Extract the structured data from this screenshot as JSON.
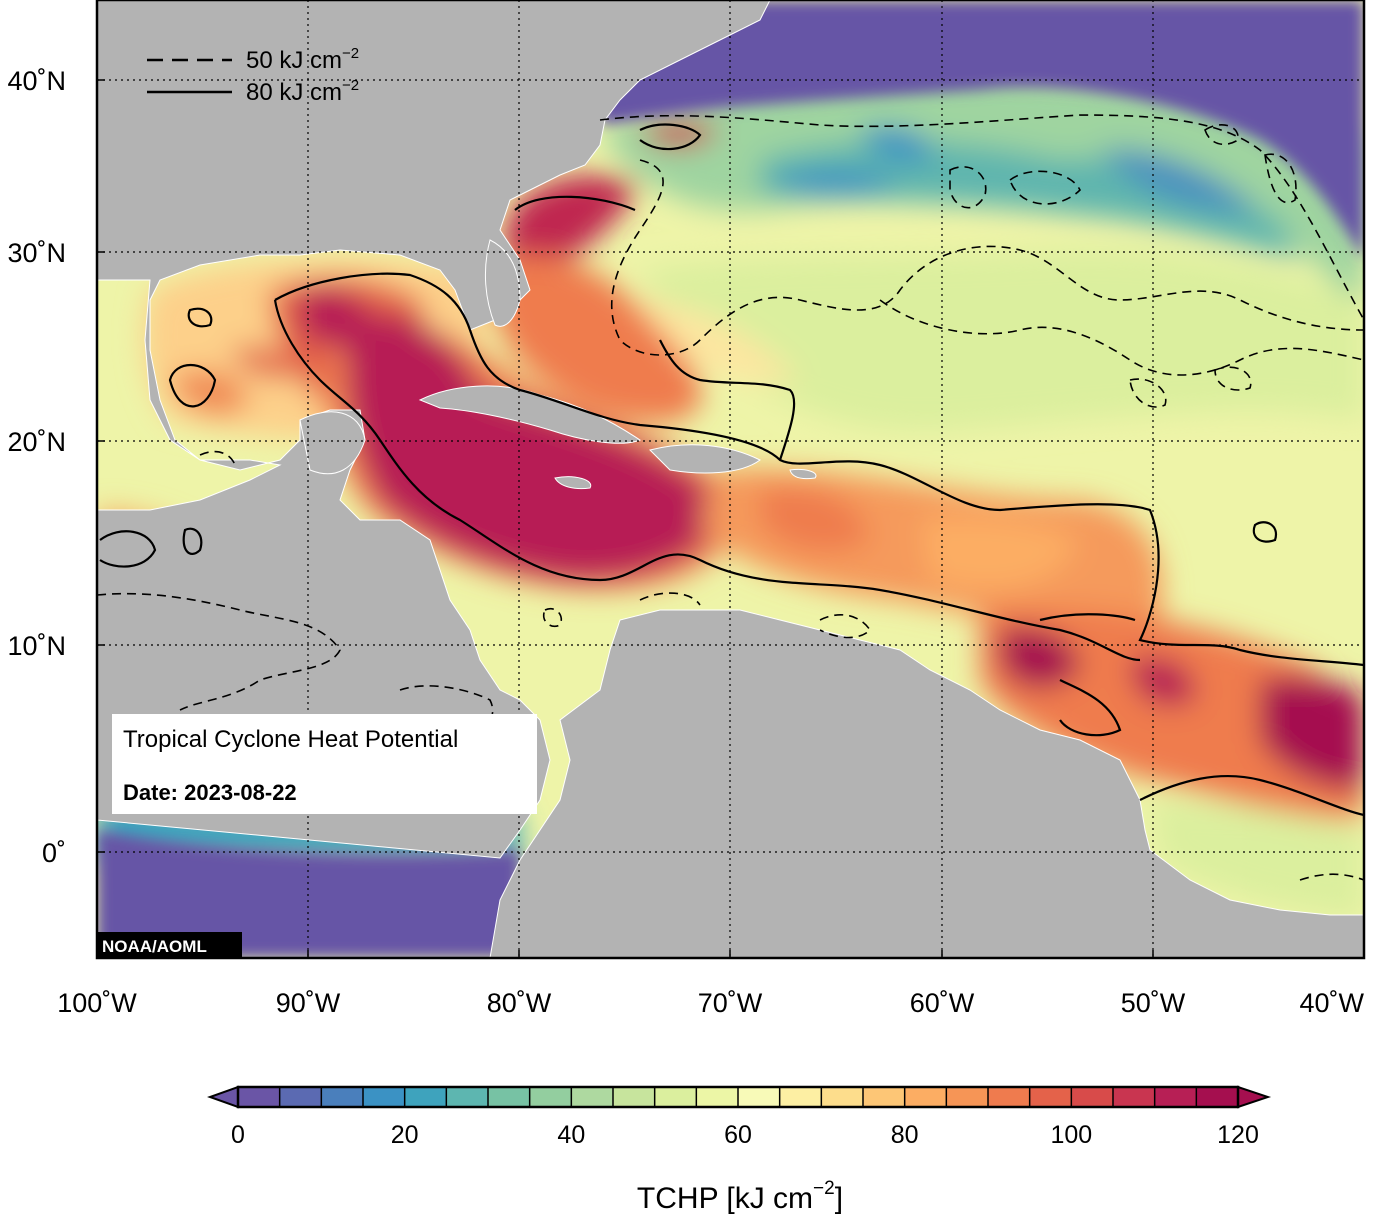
{
  "map": {
    "lon_labels": [
      "100˚W",
      "90˚W",
      "80˚W",
      "70˚W",
      "60˚W",
      "50˚W",
      "40˚W"
    ],
    "lat_labels": [
      "40˚N",
      "30˚N",
      "20˚N",
      "10˚N",
      "0˚"
    ],
    "lon_range": [
      -100,
      -40
    ],
    "lat_range": [
      -5,
      44
    ],
    "colors": {
      "land": "#b3b3b3",
      "coast": "#ffffff",
      "frame": "#000000"
    }
  },
  "legend": {
    "dashed": {
      "value": "50 kJ cm",
      "exp": "−2"
    },
    "solid": {
      "value": "80 kJ cm",
      "exp": "−2"
    }
  },
  "info": {
    "title": "Tropical Cyclone Heat Potential",
    "date": "Date: 2023-08-22"
  },
  "credit": "NOAA/AOML",
  "colorbar": {
    "min": 0,
    "max": 120,
    "step": 5,
    "tick_labels": [
      "0",
      "20",
      "40",
      "60",
      "80",
      "100",
      "120"
    ],
    "title": "TCHP [kJ cm",
    "title_exp": "−2",
    "title_end": "]",
    "colors": [
      "#6a55a6",
      "#5b6ab2",
      "#4a7fbc",
      "#3b92c4",
      "#3ea3bd",
      "#5db6b0",
      "#77c2a4",
      "#93ce9f",
      "#aed9a0",
      "#c7e49d",
      "#dbef9e",
      "#ecf6a6",
      "#f8fab8",
      "#fdefa3",
      "#fddd8c",
      "#fdc676",
      "#fcad63",
      "#f69556",
      "#ef7b4e",
      "#e4624a",
      "#d84b4a",
      "#c93550",
      "#b71f55",
      "#a50f4f"
    ]
  }
}
